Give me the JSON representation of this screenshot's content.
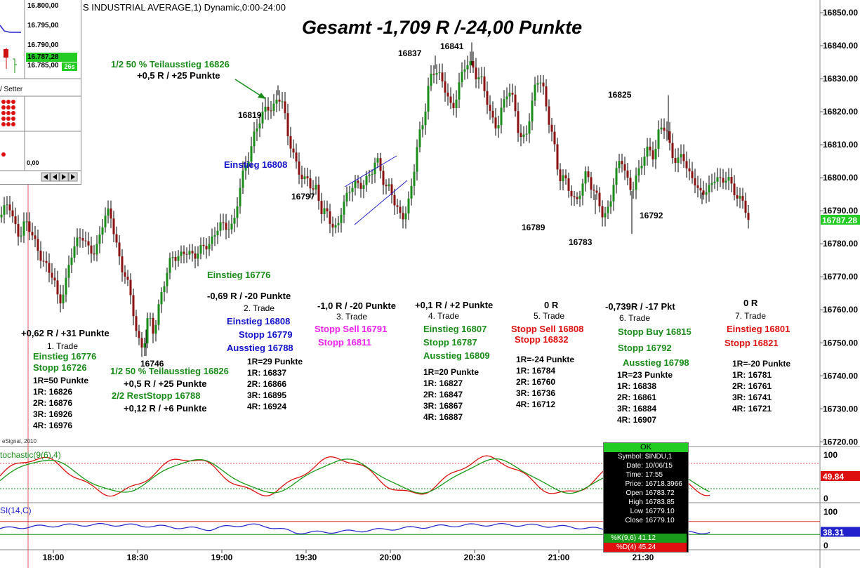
{
  "header": {
    "title": "S INDUSTRIAL AVERAGE,1) Dynamic,0:00-24:00"
  },
  "chart_data": {
    "type": "candlestick",
    "title": "Gesamt -1,709 R /-24,00 Punkte",
    "y_axis": {
      "ticks": [
        "16850.00",
        "16840.00",
        "16830.00",
        "16820.00",
        "16810.00",
        "16800.00",
        "16790.00",
        "16780.00",
        "16770.00",
        "16760.00",
        "16750.00",
        "16740.00",
        "16730.00",
        "16720.00"
      ],
      "ylim": [
        16719,
        16853
      ]
    },
    "x_axis": {
      "ticks": [
        "18:00",
        "18:30",
        "19:00",
        "19:30",
        "20:00",
        "20:30",
        "21:00",
        "21:30"
      ]
    },
    "last_price": "16787.28",
    "watermark": "eSignal, 2010",
    "price_labels": [
      "16837",
      "16841",
      "16819",
      "16797",
      "16789",
      "16783",
      "16825",
      "16792",
      "16746"
    ],
    "stochastic": {
      "label": "tochastic(9(6),4)",
      "ticks": [
        "100",
        "0"
      ],
      "value": "49.84"
    },
    "rsi": {
      "label": "SI(14,C)",
      "ticks": [
        "100",
        "0"
      ],
      "value": "38.31"
    }
  },
  "annotations": {
    "trade1": {
      "result": "+0,62 R / +31 Punkte",
      "name": "1. Trade",
      "entry": "Einstieg 16776",
      "stop": "Stopp 16726",
      "r_def": "1R=50 Punkte",
      "targets": [
        "1R: 16826",
        "2R: 16876",
        "3R: 16926",
        "4R: 16976"
      ],
      "partial": "1/2 50 % Teilausstieg 16826",
      "partial_result": "+0,5 R / +25 Punkte",
      "rest": "2/2 RestStopp 16788",
      "rest_result": "+0,12 R / +6 Punkte"
    },
    "top_partial": {
      "label": "1/2 50 % Teilausstieg 16826",
      "result": "+0,5 R / +25 Punkte"
    },
    "entry_blue": "Einstieg 16808",
    "entry_green": "Einstieg 16776",
    "trade2": {
      "result": "-0,69 R / -20 Punkte",
      "name": "2. Trade",
      "entry": "Einstieg 16808",
      "stop": "Stopp 16779",
      "exit": "Ausstieg 16788",
      "r_def": "1R=29 Punkte",
      "targets": [
        "1R: 16837",
        "2R: 16866",
        "3R: 16895",
        "4R: 16924"
      ]
    },
    "trade3": {
      "result": "-1,0 R / -20 Punkte",
      "name": "3. Trade",
      "entry": "Stopp Sell 16791",
      "stop": "Stopp 16811"
    },
    "trade4": {
      "result": "+0,1 R / +2 Punkte",
      "name": "4. Trade",
      "entry": "Einstieg 16807",
      "stop": "Stopp 16787",
      "exit": "Ausstieg 16809",
      "r_def": "1R=20 Punkte",
      "targets": [
        "1R: 16827",
        "2R: 16847",
        "3R: 16867",
        "4R: 16887"
      ]
    },
    "trade5": {
      "result": "0 R",
      "name": "5. Trade",
      "entry": "Stopp Sell 16808",
      "stop": "Stopp 16832",
      "r_def": "1R=-24 Punkte",
      "targets": [
        "1R: 16784",
        "2R: 16760",
        "3R: 16736",
        "4R: 16712"
      ]
    },
    "trade6": {
      "result": "-0,739R / -17 Pkt",
      "name": "6. Trade",
      "entry": "Stopp Buy 16815",
      "stop": "Stopp 16792",
      "exit": "Ausstieg 16798",
      "r_def": "1R=23 Punkte",
      "targets": [
        "1R: 16838",
        "2R: 16861",
        "3R: 16884",
        "4R: 16907"
      ]
    },
    "trade7": {
      "result": "0 R",
      "name": "7. Trade",
      "entry": "Einstieg 16801",
      "stop": "Stopp 16821",
      "r_def": "1R=-20 Punkte",
      "targets": [
        "1R: 16781",
        "2R: 16761",
        "3R: 16741",
        "4R: 16721"
      ]
    }
  },
  "inset": {
    "prices": [
      "16.800,00",
      "16.795,00",
      "16.790,00",
      "16.785,00"
    ],
    "current": "16.787,28",
    "timer": "26s",
    "tab": "/ Setter",
    "zero": "0,00"
  },
  "popup": {
    "ok": "OK",
    "rows": [
      {
        "k": "Symbol:",
        "v": "$INDU,1"
      },
      {
        "k": "Date:",
        "v": "10/06/15"
      },
      {
        "k": "Time:",
        "v": "17:55"
      },
      {
        "k": "Price:",
        "v": "16718.3966"
      },
      {
        "k": "Open",
        "v": "16783.72"
      },
      {
        "k": "High",
        "v": "16783.85"
      },
      {
        "k": "Low",
        "v": "16779.10"
      },
      {
        "k": "Close",
        "v": "16779.10"
      }
    ],
    "k_value": "%K(9,6) 41.12",
    "d_value": "%D(4) 45.24"
  },
  "colors": {
    "up": "#1a8c1a",
    "down": "#8b1010",
    "stoch_k": "#dd1010",
    "stoch_d": "#1a9a1a",
    "rsi": "#2222cc",
    "accent": "#22cc22"
  }
}
